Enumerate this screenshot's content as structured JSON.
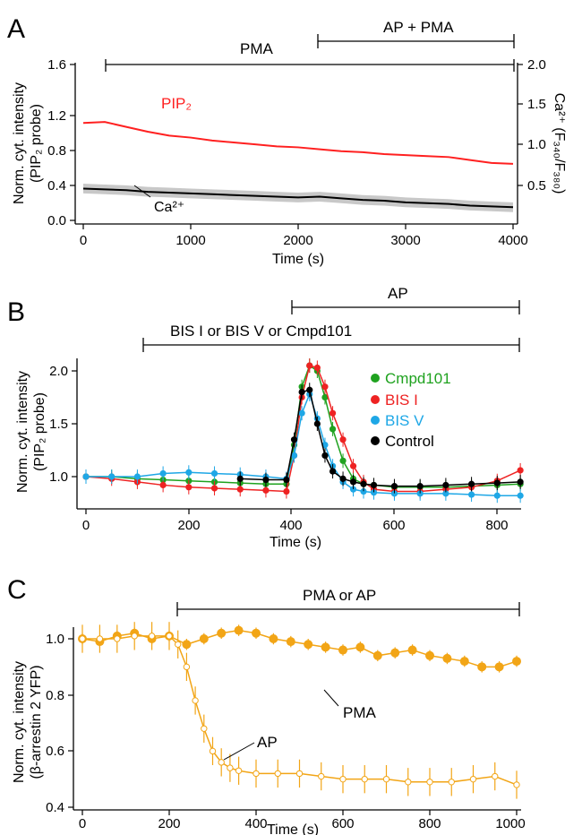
{
  "chart_data": [
    {
      "panel": "A",
      "type": "line",
      "xlabel": "Time (s)",
      "ylabel": [
        "Norm. cyt. intensity",
        "(PIP₂ probe)"
      ],
      "ylabel_right": [
        "Ca²⁺ (F₃₄₀/F₃₈₀)"
      ],
      "xlim": [
        0,
        4000
      ],
      "ylim": [
        0,
        1.6
      ],
      "ylim_right": [
        0,
        2.0
      ],
      "xticks": [
        "0",
        "1000",
        "2000",
        "3000",
        "4000"
      ],
      "yticks": [
        "0.0",
        "0.4",
        "0.8",
        "1.2",
        "1.6"
      ],
      "yticks_right": [
        "0.5",
        "1.0",
        "1.5",
        "2.0"
      ],
      "treatment_bars": [
        {
          "label": "PMA",
          "start": 200,
          "end": 4000
        },
        {
          "label": "AP + PMA",
          "start": 2200,
          "end": 4000
        }
      ],
      "series": [
        {
          "name": "PIP₂",
          "color": "#ff2020",
          "axis": "left",
          "x": [
            0,
            200,
            400,
            600,
            800,
            1000,
            1200,
            1400,
            1600,
            1800,
            2000,
            2200,
            2400,
            2600,
            2800,
            3000,
            3200,
            3400,
            3600,
            3800,
            4000
          ],
          "y": [
            1.0,
            1.01,
            0.96,
            0.91,
            0.87,
            0.85,
            0.82,
            0.8,
            0.78,
            0.76,
            0.75,
            0.73,
            0.71,
            0.7,
            0.68,
            0.67,
            0.66,
            0.65,
            0.62,
            0.59,
            0.58
          ]
        },
        {
          "name": "Ca²⁺",
          "color": "#000000",
          "band_color": "#c8c8c8",
          "axis": "right",
          "x": [
            0,
            200,
            400,
            600,
            800,
            1000,
            1200,
            1400,
            1600,
            1800,
            2000,
            2200,
            2400,
            2600,
            2800,
            3000,
            3200,
            3400,
            3600,
            3800,
            4000
          ],
          "y": [
            0.47,
            0.46,
            0.45,
            0.43,
            0.42,
            0.41,
            0.4,
            0.39,
            0.38,
            0.37,
            0.36,
            0.37,
            0.35,
            0.33,
            0.32,
            0.3,
            0.29,
            0.28,
            0.26,
            0.25,
            0.24
          ],
          "band": 0.06
        }
      ]
    },
    {
      "panel": "B",
      "type": "line",
      "xlabel": "Time (s)",
      "ylabel": [
        "Norm. cyt. intensity",
        "(PIP₂ probe)"
      ],
      "xlim": [
        0,
        850
      ],
      "ylim": [
        0.8,
        2.2
      ],
      "xticks": [
        "0",
        "200",
        "400",
        "600",
        "800"
      ],
      "yticks": [
        "1.0",
        "1.5",
        "2.0"
      ],
      "treatment_bars": [
        {
          "label": "BIS I or BIS V or Cmpd101",
          "start": 105,
          "end": 850
        },
        {
          "label": "AP",
          "start": 400,
          "end": 850
        }
      ],
      "legend_position": "right",
      "series": [
        {
          "name": "Cmpd101",
          "color": "#1fa21f",
          "x": [
            0,
            50,
            100,
            150,
            200,
            250,
            300,
            350,
            390,
            405,
            420,
            435,
            450,
            465,
            480,
            500,
            520,
            540,
            560,
            600,
            650,
            700,
            750,
            800,
            845
          ],
          "y": [
            1.0,
            1.0,
            0.98,
            0.97,
            0.96,
            0.95,
            0.94,
            0.93,
            0.93,
            1.3,
            1.85,
            2.05,
            2.0,
            1.75,
            1.45,
            1.15,
            0.98,
            0.93,
            0.92,
            0.9,
            0.9,
            0.9,
            0.91,
            0.92,
            0.93
          ]
        },
        {
          "name": "BIS I",
          "color": "#ee2222",
          "x": [
            0,
            50,
            100,
            150,
            200,
            250,
            300,
            350,
            390,
            405,
            420,
            435,
            450,
            465,
            480,
            500,
            520,
            540,
            560,
            600,
            650,
            700,
            750,
            800,
            845
          ],
          "y": [
            1.0,
            0.98,
            0.95,
            0.92,
            0.9,
            0.89,
            0.88,
            0.87,
            0.86,
            1.2,
            1.75,
            2.05,
            2.03,
            1.85,
            1.6,
            1.35,
            1.1,
            0.95,
            0.88,
            0.86,
            0.86,
            0.88,
            0.9,
            0.96,
            1.06
          ]
        },
        {
          "name": "BIS V",
          "color": "#1ea7e6",
          "x": [
            0,
            50,
            100,
            150,
            200,
            250,
            300,
            350,
            390,
            405,
            420,
            435,
            450,
            465,
            480,
            500,
            520,
            540,
            560,
            600,
            650,
            700,
            750,
            800,
            845
          ],
          "y": [
            1.0,
            1.0,
            1.0,
            1.03,
            1.04,
            1.03,
            1.02,
            1.0,
            0.98,
            1.2,
            1.6,
            1.78,
            1.55,
            1.3,
            1.1,
            0.95,
            0.88,
            0.86,
            0.85,
            0.84,
            0.84,
            0.84,
            0.83,
            0.82,
            0.82
          ]
        },
        {
          "name": "Control",
          "color": "#000000",
          "x": [
            300,
            350,
            390,
            405,
            420,
            435,
            450,
            465,
            480,
            500,
            520,
            540,
            560,
            600,
            650,
            700,
            750,
            800,
            845
          ],
          "y": [
            0.98,
            0.97,
            0.97,
            1.35,
            1.8,
            1.82,
            1.5,
            1.2,
            1.05,
            0.98,
            0.95,
            0.93,
            0.92,
            0.91,
            0.91,
            0.92,
            0.93,
            0.94,
            0.95
          ]
        }
      ]
    },
    {
      "panel": "C",
      "type": "line",
      "xlabel": "Time (s)",
      "ylabel": [
        "Norm. cyt. intensity",
        "(β-arrestin 2 YFP)"
      ],
      "xlim": [
        0,
        1000
      ],
      "ylim": [
        0.4,
        1.05
      ],
      "xticks": [
        "0",
        "200",
        "400",
        "600",
        "800",
        "1000"
      ],
      "yticks": [
        "0.4",
        "0.6",
        "0.8",
        "1.0"
      ],
      "treatment_bars": [
        {
          "label": "PMA or AP",
          "start": 215,
          "end": 1000
        }
      ],
      "series": [
        {
          "name": "PMA",
          "color": "#f2a516",
          "marker": "filled",
          "x": [
            0,
            40,
            80,
            120,
            160,
            200,
            240,
            280,
            320,
            360,
            400,
            440,
            480,
            520,
            560,
            600,
            640,
            680,
            720,
            760,
            800,
            840,
            880,
            920,
            960,
            1000
          ],
          "y": [
            1.0,
            0.99,
            1.01,
            1.02,
            1.0,
            1.01,
            0.98,
            1.0,
            1.02,
            1.03,
            1.02,
            1.0,
            0.99,
            0.98,
            0.97,
            0.96,
            0.97,
            0.94,
            0.95,
            0.96,
            0.94,
            0.93,
            0.92,
            0.9,
            0.9,
            0.92
          ],
          "error": 0.02
        },
        {
          "name": "AP",
          "color": "#f2a516",
          "marker": "open",
          "x": [
            0,
            40,
            80,
            120,
            160,
            200,
            220,
            240,
            260,
            280,
            300,
            320,
            340,
            360,
            400,
            450,
            500,
            550,
            600,
            650,
            700,
            750,
            800,
            850,
            900,
            950,
            1000
          ],
          "y": [
            1.0,
            1.0,
            1.0,
            1.01,
            1.01,
            1.01,
            0.98,
            0.9,
            0.78,
            0.68,
            0.6,
            0.56,
            0.54,
            0.53,
            0.52,
            0.52,
            0.52,
            0.51,
            0.5,
            0.5,
            0.5,
            0.49,
            0.49,
            0.49,
            0.5,
            0.51,
            0.48
          ],
          "error": 0.05
        }
      ]
    }
  ]
}
